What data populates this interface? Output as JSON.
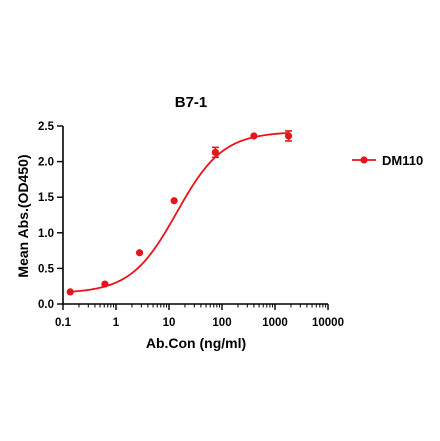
{
  "chart_data": {
    "type": "scatter",
    "title": "B7-1",
    "xlabel": "Ab.Con (ng/ml)",
    "ylabel": "Mean Abs.(OD450)",
    "x_scale": "log",
    "xlim": [
      0.1,
      10000
    ],
    "ylim": [
      0,
      2.5
    ],
    "x_ticks": [
      0.1,
      1,
      10,
      100,
      1000,
      10000
    ],
    "x_tick_labels": [
      "0.1",
      "1",
      "10",
      "100",
      "1000",
      "10000"
    ],
    "y_ticks": [
      0,
      0.5,
      1,
      1.5,
      2,
      2.5
    ],
    "y_tick_labels": [
      "0.0",
      "0.5",
      "1.0",
      "1.5",
      "2.0",
      "2.5"
    ],
    "grid": false,
    "legend_position": "right",
    "series": [
      {
        "name": "DM110",
        "color": "#e8141b",
        "marker": "circle",
        "fit": "sigmoidal-4pl",
        "x": [
          0.137,
          0.617,
          2.78,
          12.5,
          75,
          400,
          1800
        ],
        "y": [
          0.17,
          0.28,
          0.72,
          1.45,
          2.13,
          2.36,
          2.36
        ],
        "error": [
          0,
          0,
          0,
          0,
          0.07,
          0,
          0.07
        ]
      }
    ]
  }
}
